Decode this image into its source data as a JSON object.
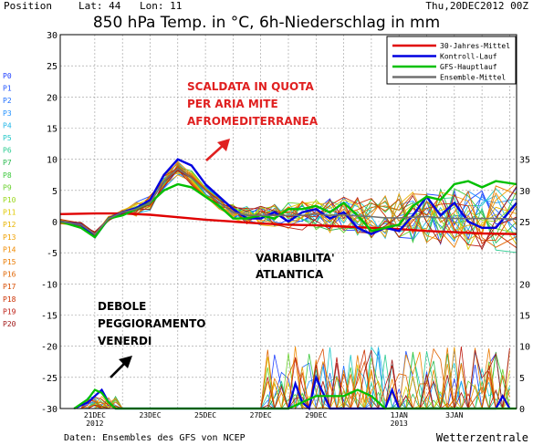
{
  "header": {
    "position": "Position",
    "lat": "Lat: 44",
    "lon": "Lon: 11",
    "run": "Thu,20DEC2012  00Z"
  },
  "footer": {
    "source": "Daten: Ensembles des GFS von NCEP",
    "brand": "Wetterzentrale"
  },
  "members": [
    "P0",
    "P1",
    "P2",
    "P3",
    "P4",
    "P5",
    "P6",
    "P7",
    "P8",
    "P9",
    "P10",
    "P11",
    "P12",
    "P13",
    "P14",
    "P15",
    "P16",
    "P17",
    "P18",
    "P19",
    "P20"
  ],
  "member_colors": [
    "#2040ff",
    "#2255ff",
    "#1f6fff",
    "#1e90ff",
    "#1fb5e8",
    "#22c8c8",
    "#2acb90",
    "#27b84c",
    "#3cc83c",
    "#6ad12e",
    "#9ad71c",
    "#e0c800",
    "#e8b400",
    "#f0a000",
    "#f08a00",
    "#ea7a00",
    "#e06400",
    "#d84c00",
    "#cc3000",
    "#bc1a10",
    "#a01818"
  ],
  "legend": [
    {
      "label": "30-Jahres-Mittel",
      "color": "#e00000"
    },
    {
      "label": "Kontroll-Lauf",
      "color": "#0000e0"
    },
    {
      "label": "GFS-Hauptlauf",
      "color": "#00c000"
    },
    {
      "label": "Ensemble-Mittel",
      "color": "#707070"
    }
  ],
  "annotations": {
    "warm": [
      "SCALDATA IN QUOTA",
      "PER ARIA MITE",
      "AFROMEDITERRANEA"
    ],
    "atlantic": [
      "VARIABILITA'",
      "ATLANTICA"
    ],
    "friday": [
      "DEBOLE",
      "PEGGIORAMENTO",
      "VENERDI"
    ],
    "warm_color": "#e02020",
    "text_color": "#000000"
  },
  "chart_data": {
    "type": "line",
    "title": "850 hPa Temp. in °C, 6h-Niederschlag in mm",
    "xlabel": "",
    "ylabel": "",
    "y_left_ticks": [
      30,
      25,
      20,
      15,
      10,
      5,
      0,
      -5,
      -10,
      -15,
      -20,
      -25,
      -30
    ],
    "y_right_temp_ticks": [
      35,
      30,
      25
    ],
    "y_right_precip_ticks": [
      20,
      15,
      10,
      5,
      0
    ],
    "ylim_left": [
      -30,
      30
    ],
    "x_labels": [
      {
        "day": 0.5,
        "lines": [
          "21DEC",
          "2012"
        ]
      },
      {
        "day": 2.5,
        "lines": [
          "23DEC"
        ]
      },
      {
        "day": 4.5,
        "lines": [
          "25DEC"
        ]
      },
      {
        "day": 6.5,
        "lines": [
          "27DEC"
        ]
      },
      {
        "day": 8.5,
        "lines": [
          "29DEC"
        ]
      },
      {
        "day": 11.5,
        "lines": [
          "1JAN",
          "2013"
        ]
      },
      {
        "day": 13.5,
        "lines": [
          "3JAN"
        ]
      }
    ],
    "xlim_days": [
      -0.75,
      15.75
    ],
    "series": [
      {
        "name": "30-Jahres-Mittel",
        "x": [
          -0.75,
          0.5,
          1.5,
          2.5,
          3.5,
          4.5,
          5.5,
          6.5,
          7.5,
          8.5,
          9.5,
          10.5,
          11.5,
          12.5,
          13.5,
          14.5,
          15.75
        ],
        "y": [
          1.2,
          1.3,
          1.3,
          1.1,
          0.7,
          0.3,
          0.0,
          -0.3,
          -0.5,
          -0.6,
          -0.8,
          -1.0,
          -1.2,
          -1.5,
          -1.7,
          -1.9,
          -2.0
        ]
      },
      {
        "name": "Kontroll-Lauf",
        "x": [
          -0.75,
          0,
          0.5,
          1,
          1.5,
          2,
          2.5,
          3,
          3.5,
          4,
          4.5,
          5,
          5.5,
          6,
          6.5,
          7,
          7.5,
          8,
          8.5,
          9,
          9.5,
          10,
          10.5,
          11,
          11.5,
          12,
          12.5,
          13,
          13.5,
          14,
          14.5,
          15,
          15.75
        ],
        "y": [
          0,
          -0.5,
          -2.5,
          0.5,
          1.5,
          2.2,
          3.5,
          7.5,
          10,
          9,
          6,
          4,
          2,
          0.5,
          0.5,
          1.5,
          0,
          1.5,
          2,
          0.5,
          1.5,
          -1,
          -2,
          -1,
          -1.5,
          1,
          4,
          1,
          3,
          0,
          -1,
          -1,
          3
        ]
      },
      {
        "name": "GFS-Hauptlauf",
        "x": [
          -0.75,
          0,
          0.5,
          1,
          1.5,
          2,
          2.5,
          3,
          3.5,
          4,
          4.5,
          5,
          5.5,
          6,
          6.5,
          7,
          7.5,
          8,
          8.5,
          9,
          9.5,
          10,
          10.5,
          11,
          11.5,
          12,
          12.5,
          13,
          13.5,
          14,
          14.5,
          15,
          15.75
        ],
        "y": [
          0,
          -1,
          -2.5,
          0.5,
          1,
          2,
          3,
          5,
          6,
          5.5,
          4,
          2.5,
          0.5,
          0.5,
          1,
          0.5,
          2,
          2,
          2.5,
          1.5,
          3,
          1,
          -1.5,
          -1,
          -0.5,
          2.5,
          4,
          3.5,
          6,
          6.5,
          5.5,
          6.5,
          6
        ]
      },
      {
        "name": "Ensemble-Mittel",
        "x": [
          -0.75,
          0,
          0.5,
          1,
          1.5,
          2,
          2.5,
          3,
          3.5,
          4,
          4.5,
          5,
          5.5,
          6,
          6.5,
          7,
          7.5,
          8,
          8.5,
          9,
          9.5,
          10,
          10.5,
          11,
          11.5,
          12,
          12.5,
          13,
          13.5,
          14,
          14.5,
          15,
          15.75
        ],
        "y": [
          0,
          -0.5,
          -2,
          0.5,
          1.5,
          2,
          3,
          6.5,
          8.5,
          7,
          5,
          3,
          1.5,
          1,
          1,
          1,
          1,
          1,
          1.2,
          1,
          1.1,
          0.9,
          0.8,
          0.6,
          0.6,
          0.7,
          0.8,
          0.6,
          0.5,
          0.5,
          0.5,
          0.5,
          0.4
        ]
      }
    ],
    "precip_series": [
      {
        "name": "Kontroll-Lauf",
        "x": [
          -0.25,
          0.25,
          0.5,
          0.75,
          1,
          1.25,
          7.5,
          7.75,
          8,
          8.25,
          8.5,
          9,
          11,
          11.25,
          11.5,
          15,
          15.25,
          15.5
        ],
        "y": [
          0,
          1,
          2,
          3,
          1,
          0,
          0,
          4,
          1,
          0,
          5,
          0,
          0,
          3,
          0,
          0,
          2,
          0
        ]
      },
      {
        "name": "GFS-Hauptlauf",
        "x": [
          -0.25,
          0.25,
          0.5,
          0.75,
          1,
          1.25,
          4,
          6.5,
          7.5,
          8,
          8.5,
          9,
          9.5,
          10,
          10.5,
          11,
          11.5,
          12,
          13,
          14,
          15.75
        ],
        "y": [
          0,
          1.5,
          3,
          2.5,
          1,
          0,
          0,
          0,
          0,
          1,
          2,
          2,
          2,
          3,
          2,
          0,
          0,
          0,
          0,
          0,
          0
        ]
      }
    ],
    "grid": true
  }
}
